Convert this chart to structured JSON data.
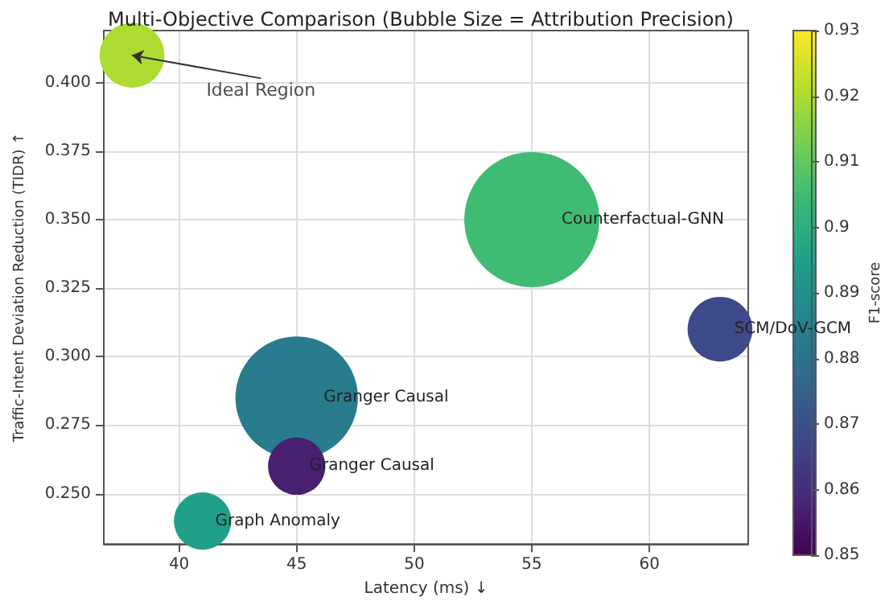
{
  "chart_data": {
    "type": "bubble",
    "title": "Multi-Objective Comparison (Bubble Size = Attribution Precision)",
    "xlabel": "Latency (ms) ↓",
    "ylabel": "Traffic-Intent Deviation Reduction (TIDR) ↑",
    "clabel": "F1-score",
    "annotations": [
      {
        "text": "Ideal Region",
        "x": 38,
        "y": 0.41
      }
    ],
    "series": [
      {
        "x": [
          38
        ],
        "values": [
          0.41
        ],
        "sizes": [
          0.23
        ],
        "cvalues": [
          0.92
        ]
      },
      {
        "name": "Counterfactual-GNN",
        "x": [
          55
        ],
        "values": [
          0.35
        ],
        "sizes": [
          1
        ],
        "cvalues": [
          0.905
        ]
      },
      {
        "name": "SCM/DoV-GCM",
        "x": [
          63
        ],
        "values": [
          0.31
        ],
        "sizes": [
          0.23
        ],
        "cvalues": [
          0.868
        ]
      },
      {
        "name": "Granger Causal",
        "x": [
          45
        ],
        "values": [
          0.285
        ],
        "sizes": [
          0.82
        ],
        "cvalues": [
          0.883
        ]
      },
      {
        "name": "Granger Causal",
        "x": [
          45
        ],
        "values": [
          0.26
        ],
        "sizes": [
          0.18
        ],
        "cvalues": [
          0.857
        ]
      },
      {
        "name": "Graph Anomaly",
        "x": [
          41
        ],
        "values": [
          0.24
        ],
        "sizes": [
          0.18
        ],
        "cvalues": [
          0.895
        ]
      }
    ],
    "xlim": [
      36.8,
      64.2
    ],
    "xticks": [
      40,
      45,
      50,
      55,
      60
    ],
    "ylim": [
      0.2316,
      0.419
    ],
    "yticks": [
      {
        "value": 0.25,
        "label": "0.250"
      },
      {
        "value": 0.275,
        "label": "0.275"
      },
      {
        "value": 0.3,
        "label": "0.300"
      },
      {
        "value": 0.325,
        "label": "0.325"
      },
      {
        "value": 0.35,
        "label": "0.350"
      },
      {
        "value": 0.375,
        "label": "0.375"
      },
      {
        "value": 0.4,
        "label": "0.400"
      }
    ],
    "clim": [
      0.85,
      0.93
    ],
    "cticks": [
      0.85,
      0.86,
      0.87,
      0.88,
      0.89,
      0.9,
      0.91,
      0.92,
      0.93
    ],
    "grid": true,
    "marker": "circle"
  }
}
